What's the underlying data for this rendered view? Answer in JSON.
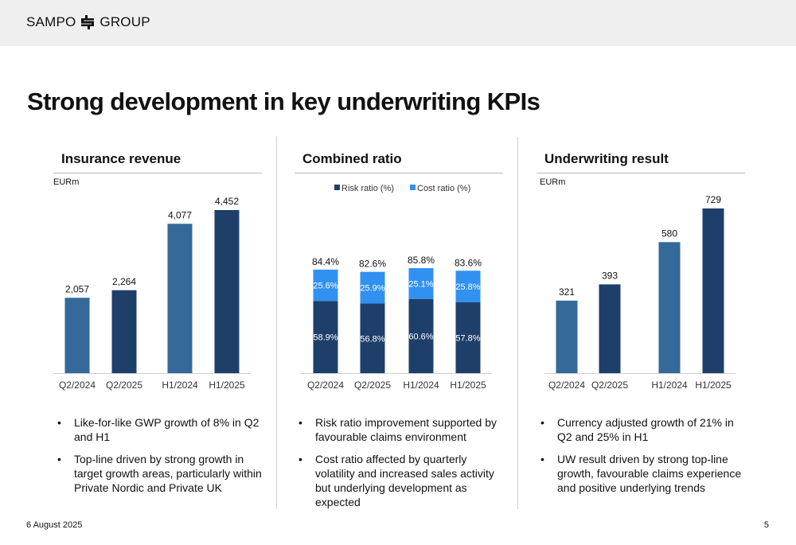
{
  "header": {
    "logo_left": "SAMPO",
    "logo_right": "GROUP"
  },
  "slide_title": "Strong development in key underwriting KPIs",
  "colors": {
    "light_bar": "#34699a",
    "dark_bar": "#1f3f6b",
    "cost_bar": "#3191f1",
    "risk_bar": "#1f3f6b"
  },
  "panels": {
    "revenue": {
      "title": "Insurance revenue",
      "unit": "EURm",
      "bullets": [
        "Like-for-like GWP growth of 8% in Q2 and H1",
        "Top-line driven by strong growth in target growth areas, particularly within Private Nordic and Private UK"
      ]
    },
    "combined": {
      "title": "Combined ratio",
      "bullets": [
        "Risk ratio improvement supported by favourable claims environment",
        "Cost ratio affected by quarterly volatility and increased sales activity but underlying development as expected"
      ]
    },
    "uw": {
      "title": "Underwriting result",
      "unit": "EURm",
      "bullets": [
        "Currency adjusted growth of 21% in Q2 and 25% in H1",
        "UW result driven by strong top-line growth, favourable claims experience and positive underlying trends"
      ]
    }
  },
  "chart_data": [
    {
      "type": "bar",
      "title": "Insurance revenue",
      "ylabel": "EURm",
      "categories": [
        "Q2/2024",
        "Q2/2025",
        "H1/2024",
        "H1/2025"
      ],
      "values": [
        2057,
        2264,
        4077,
        4452
      ],
      "labels": [
        "2,057",
        "2,264",
        "4,077",
        "4,452"
      ],
      "bar_colors": [
        "#34699a",
        "#1f3f6b",
        "#34699a",
        "#1f3f6b"
      ],
      "ylim": [
        0,
        4452
      ],
      "grid": false
    },
    {
      "type": "bar",
      "stacked": true,
      "title": "Combined ratio",
      "categories": [
        "Q2/2024",
        "Q2/2025",
        "H1/2024",
        "H1/2025"
      ],
      "series": [
        {
          "name": "Risk ratio (%)",
          "values": [
            58.9,
            56.8,
            60.6,
            57.8
          ],
          "labels": [
            "58.9%",
            "56.8%",
            "60.6%",
            "57.8%"
          ],
          "color": "#1f3f6b"
        },
        {
          "name": "Cost ratio (%)",
          "values": [
            25.6,
            25.9,
            25.1,
            25.8
          ],
          "labels": [
            "25.6%",
            "25.9%",
            "25.1%",
            "25.8%"
          ],
          "color": "#3191f1"
        }
      ],
      "totals": [
        84.4,
        82.6,
        85.8,
        83.6
      ],
      "total_labels": [
        "84.4%",
        "82.6%",
        "85.8%",
        "83.6%"
      ],
      "legend_position": "top",
      "grid": false
    },
    {
      "type": "bar",
      "title": "Underwriting result",
      "ylabel": "EURm",
      "categories": [
        "Q2/2024",
        "Q2/2025",
        "H1/2024",
        "H1/2025"
      ],
      "values": [
        321,
        393,
        580,
        729
      ],
      "labels": [
        "321",
        "393",
        "580",
        "729"
      ],
      "bar_colors": [
        "#34699a",
        "#1f3f6b",
        "#34699a",
        "#1f3f6b"
      ],
      "ylim": [
        0,
        729
      ],
      "grid": false
    }
  ],
  "footer": {
    "date": "6 August 2025",
    "page": "5"
  }
}
